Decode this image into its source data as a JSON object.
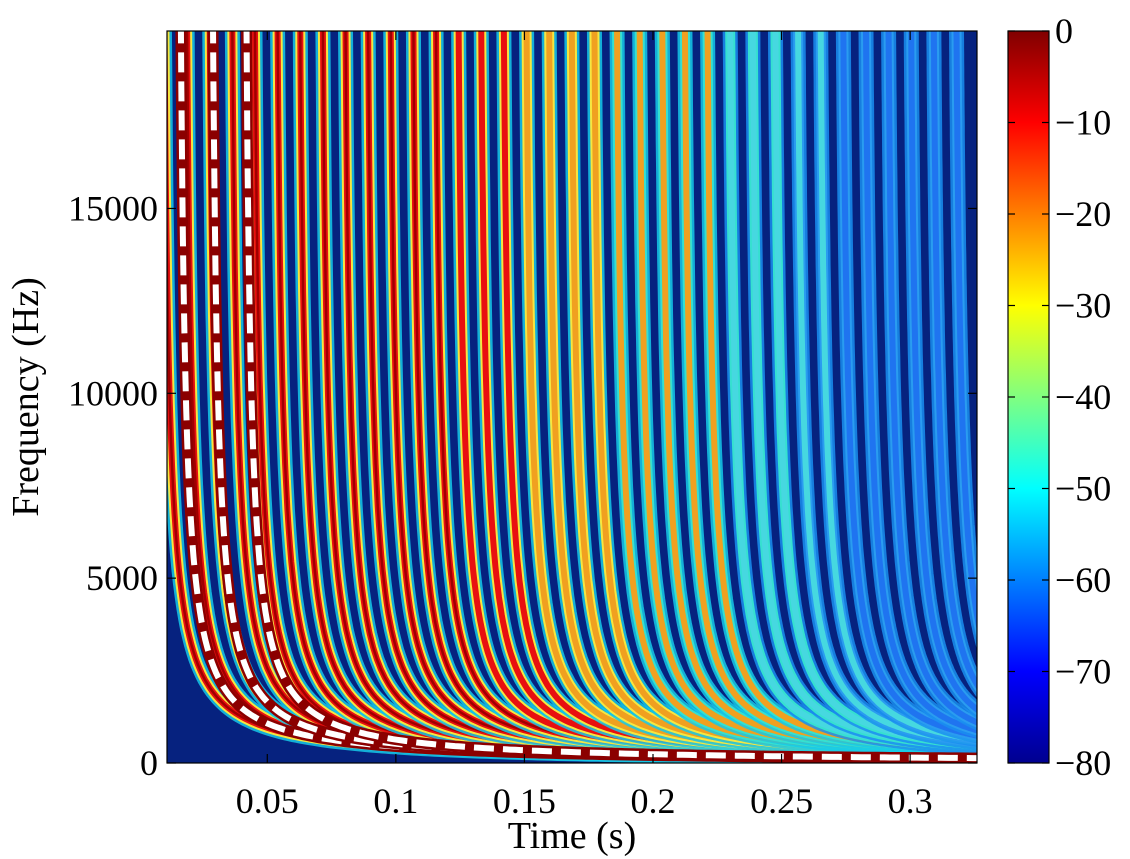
{
  "chart_data": {
    "type": "heatmap",
    "title": "",
    "xlabel": "Time (s)",
    "ylabel": "Frequency (Hz)",
    "xlim": [
      0.011,
      0.326
    ],
    "ylim": [
      0,
      19800
    ],
    "x_ticks": [
      0.05,
      0.1,
      0.15,
      0.2,
      0.25,
      0.3
    ],
    "x_tick_labels": [
      "0.05",
      "0.1",
      "0.15",
      "0.2",
      "0.25",
      "0.3"
    ],
    "y_ticks": [
      0,
      5000,
      10000,
      15000
    ],
    "y_tick_labels": [
      "0",
      "5000",
      "10000",
      "15000"
    ],
    "colorbar": {
      "colormap": "jet",
      "range": [
        -80,
        0
      ],
      "ticks": [
        0,
        -10,
        -20,
        -30,
        -40,
        -50,
        -60,
        -70,
        -80
      ],
      "tick_labels": [
        "0",
        "−10",
        "−20",
        "−30",
        "−40",
        "−50",
        "−60",
        "−70",
        "−80"
      ]
    },
    "ridges": {
      "description_shape": "hyperbolic frequency bands f = c / (t - t0)",
      "count": 36,
      "first_ridge_t0": 0.008,
      "ridge_onset_step_s": 0.0088,
      "decay_scale_hz_s": 40,
      "peak_level_db": 0,
      "background_level_db": -80
    },
    "overlay_curves": [
      {
        "style": "white dashed with dark red",
        "t_onset": 0.0185
      },
      {
        "style": "white dashed with dark red",
        "t_onset": 0.031
      },
      {
        "style": "white dashed with dark red",
        "t_onset": 0.044
      }
    ]
  }
}
